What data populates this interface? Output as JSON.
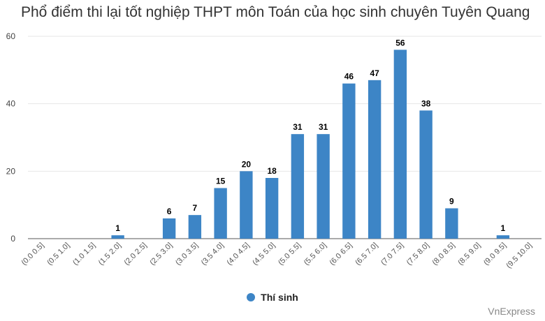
{
  "title": "Phổ điểm thi lại tốt nghiệp THPT môn Toán của học sinh chuyên Tuyên Quang",
  "watermark": "VnExpress",
  "colors": {
    "bar": "#3d85c6",
    "grid": "#e6e6e6",
    "axis": "#555555",
    "label": "#000000"
  },
  "chart_data": {
    "type": "bar",
    "title": "Phổ điểm thi lại tốt nghiệp THPT môn Toán của học sinh chuyên Tuyên Quang",
    "categories": [
      "(0.0 0.5]",
      "(0.5 1.0]",
      "(1.0 1.5]",
      "(1.5 2.0]",
      "(2.0 2.5]",
      "(2.5 3.0]",
      "(3.0 3.5]",
      "(3.5 4.0]",
      "(4.0 4.5]",
      "(4.5 5.0]",
      "(5.0 5.5]",
      "(5.5 6.0]",
      "(6.0 6.5]",
      "(6.5 7.0]",
      "(7.0 7.5]",
      "(7.5 8.0]",
      "(8.0 8.5]",
      "(8.5 9.0]",
      "(9.0 9.5]",
      "(9.5 10.0]"
    ],
    "series": [
      {
        "name": "Thí sinh",
        "values": [
          0,
          0,
          0,
          1,
          0,
          6,
          7,
          15,
          20,
          18,
          31,
          31,
          46,
          47,
          56,
          38,
          9,
          0,
          1,
          0
        ]
      }
    ],
    "ylim": [
      0,
      60
    ],
    "yticks": [
      0,
      20,
      40,
      60
    ],
    "grid": true,
    "legend": "bottom-center",
    "data_labels": "non-zero"
  }
}
